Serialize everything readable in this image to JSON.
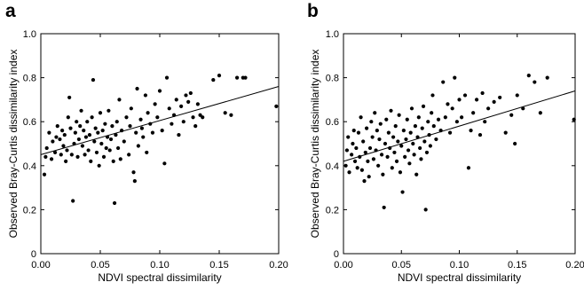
{
  "chart_data": [
    {
      "panel_label": "a",
      "type": "scatter",
      "title": "",
      "xlabel": "NDVI spectral dissimilarity",
      "ylabel": "Observed Bray-Curtis dissimilarity index",
      "xlim": [
        0,
        0.2
      ],
      "ylim": [
        0,
        1.0
      ],
      "xticks": [
        "0.00",
        "0.05",
        "0.10",
        "0.15",
        "0.20"
      ],
      "yticks": [
        "0",
        "0.2",
        "0.4",
        "0.6",
        "0.8",
        "1.0"
      ],
      "grid": false,
      "trendline": {
        "x": [
          0,
          0.2
        ],
        "y": [
          0.45,
          0.76
        ]
      },
      "points": [
        [
          0.003,
          0.36
        ],
        [
          0.004,
          0.44
        ],
        [
          0.005,
          0.48
        ],
        [
          0.007,
          0.55
        ],
        [
          0.009,
          0.43
        ],
        [
          0.01,
          0.51
        ],
        [
          0.012,
          0.46
        ],
        [
          0.013,
          0.53
        ],
        [
          0.014,
          0.58
        ],
        [
          0.016,
          0.52
        ],
        [
          0.017,
          0.45
        ],
        [
          0.018,
          0.56
        ],
        [
          0.019,
          0.49
        ],
        [
          0.02,
          0.54
        ],
        [
          0.021,
          0.42
        ],
        [
          0.022,
          0.47
        ],
        [
          0.023,
          0.62
        ],
        [
          0.024,
          0.71
        ],
        [
          0.025,
          0.57
        ],
        [
          0.026,
          0.45
        ],
        [
          0.027,
          0.24
        ],
        [
          0.028,
          0.5
        ],
        [
          0.029,
          0.55
        ],
        [
          0.03,
          0.6
        ],
        [
          0.031,
          0.44
        ],
        [
          0.032,
          0.52
        ],
        [
          0.033,
          0.58
        ],
        [
          0.034,
          0.65
        ],
        [
          0.035,
          0.49
        ],
        [
          0.036,
          0.56
        ],
        [
          0.037,
          0.45
        ],
        [
          0.038,
          0.53
        ],
        [
          0.039,
          0.6
        ],
        [
          0.04,
          0.47
        ],
        [
          0.041,
          0.54
        ],
        [
          0.042,
          0.42
        ],
        [
          0.043,
          0.62
        ],
        [
          0.044,
          0.79
        ],
        [
          0.045,
          0.51
        ],
        [
          0.046,
          0.57
        ],
        [
          0.047,
          0.46
        ],
        [
          0.048,
          0.55
        ],
        [
          0.049,
          0.4
        ],
        [
          0.05,
          0.64
        ],
        [
          0.051,
          0.5
        ],
        [
          0.052,
          0.56
        ],
        [
          0.053,
          0.44
        ],
        [
          0.054,
          0.59
        ],
        [
          0.055,
          0.48
        ],
        [
          0.056,
          0.53
        ],
        [
          0.057,
          0.65
        ],
        [
          0.058,
          0.47
        ],
        [
          0.059,
          0.52
        ],
        [
          0.06,
          0.58
        ],
        [
          0.061,
          0.42
        ],
        [
          0.062,
          0.23
        ],
        [
          0.063,
          0.54
        ],
        [
          0.064,
          0.6
        ],
        [
          0.065,
          0.48
        ],
        [
          0.066,
          0.7
        ],
        [
          0.067,
          0.43
        ],
        [
          0.068,
          0.56
        ],
        [
          0.07,
          0.51
        ],
        [
          0.072,
          0.62
        ],
        [
          0.074,
          0.45
        ],
        [
          0.075,
          0.58
        ],
        [
          0.076,
          0.66
        ],
        [
          0.078,
          0.37
        ],
        [
          0.079,
          0.33
        ],
        [
          0.08,
          0.55
        ],
        [
          0.081,
          0.75
        ],
        [
          0.082,
          0.49
        ],
        [
          0.084,
          0.61
        ],
        [
          0.085,
          0.57
        ],
        [
          0.086,
          0.53
        ],
        [
          0.088,
          0.72
        ],
        [
          0.089,
          0.46
        ],
        [
          0.09,
          0.64
        ],
        [
          0.092,
          0.59
        ],
        [
          0.094,
          0.55
        ],
        [
          0.096,
          0.68
        ],
        [
          0.098,
          0.62
        ],
        [
          0.1,
          0.74
        ],
        [
          0.102,
          0.56
        ],
        [
          0.104,
          0.41
        ],
        [
          0.106,
          0.8
        ],
        [
          0.108,
          0.66
        ],
        [
          0.11,
          0.59
        ],
        [
          0.112,
          0.63
        ],
        [
          0.114,
          0.7
        ],
        [
          0.116,
          0.54
        ],
        [
          0.118,
          0.67
        ],
        [
          0.12,
          0.6
        ],
        [
          0.122,
          0.72
        ],
        [
          0.124,
          0.69
        ],
        [
          0.126,
          0.73
        ],
        [
          0.128,
          0.62
        ],
        [
          0.13,
          0.58
        ],
        [
          0.132,
          0.68
        ],
        [
          0.134,
          0.63
        ],
        [
          0.136,
          0.62
        ],
        [
          0.145,
          0.79
        ],
        [
          0.15,
          0.81
        ],
        [
          0.155,
          0.64
        ],
        [
          0.16,
          0.63
        ],
        [
          0.165,
          0.8
        ],
        [
          0.17,
          0.8
        ],
        [
          0.172,
          0.8
        ],
        [
          0.198,
          0.67
        ]
      ]
    },
    {
      "panel_label": "b",
      "type": "scatter",
      "title": "",
      "xlabel": "NDVI spectral dissimilarity",
      "ylabel": "Observed Bray-Curtis dissimilarity index",
      "xlim": [
        0,
        0.2
      ],
      "ylim": [
        0,
        1.0
      ],
      "xticks": [
        "0.00",
        "0.05",
        "0.10",
        "0.15",
        "0.20"
      ],
      "yticks": [
        "0",
        "0.2",
        "0.4",
        "0.6",
        "0.8",
        "1.0"
      ],
      "grid": false,
      "trendline": {
        "x": [
          0,
          0.2
        ],
        "y": [
          0.42,
          0.74
        ]
      },
      "points": [
        [
          0.002,
          0.4
        ],
        [
          0.003,
          0.47
        ],
        [
          0.004,
          0.53
        ],
        [
          0.005,
          0.37
        ],
        [
          0.007,
          0.45
        ],
        [
          0.008,
          0.5
        ],
        [
          0.009,
          0.56
        ],
        [
          0.01,
          0.42
        ],
        [
          0.011,
          0.48
        ],
        [
          0.012,
          0.39
        ],
        [
          0.013,
          0.55
        ],
        [
          0.014,
          0.44
        ],
        [
          0.015,
          0.62
        ],
        [
          0.016,
          0.38
        ],
        [
          0.017,
          0.51
        ],
        [
          0.018,
          0.33
        ],
        [
          0.019,
          0.46
        ],
        [
          0.02,
          0.57
        ],
        [
          0.021,
          0.42
        ],
        [
          0.022,
          0.35
        ],
        [
          0.023,
          0.48
        ],
        [
          0.024,
          0.6
        ],
        [
          0.025,
          0.53
        ],
        [
          0.026,
          0.43
        ],
        [
          0.027,
          0.64
        ],
        [
          0.028,
          0.47
        ],
        [
          0.029,
          0.56
        ],
        [
          0.03,
          0.4
        ],
        [
          0.031,
          0.52
        ],
        [
          0.032,
          0.59
        ],
        [
          0.033,
          0.45
        ],
        [
          0.034,
          0.36
        ],
        [
          0.035,
          0.21
        ],
        [
          0.036,
          0.5
        ],
        [
          0.037,
          0.61
        ],
        [
          0.038,
          0.44
        ],
        [
          0.039,
          0.55
        ],
        [
          0.04,
          0.48
        ],
        [
          0.041,
          0.65
        ],
        [
          0.042,
          0.39
        ],
        [
          0.043,
          0.53
        ],
        [
          0.044,
          0.46
        ],
        [
          0.045,
          0.58
        ],
        [
          0.046,
          0.42
        ],
        [
          0.047,
          0.51
        ],
        [
          0.048,
          0.63
        ],
        [
          0.049,
          0.37
        ],
        [
          0.05,
          0.49
        ],
        [
          0.051,
          0.28
        ],
        [
          0.052,
          0.56
        ],
        [
          0.053,
          0.44
        ],
        [
          0.054,
          0.52
        ],
        [
          0.055,
          0.61
        ],
        [
          0.056,
          0.47
        ],
        [
          0.057,
          0.41
        ],
        [
          0.058,
          0.55
        ],
        [
          0.059,
          0.66
        ],
        [
          0.06,
          0.5
        ],
        [
          0.061,
          0.45
        ],
        [
          0.062,
          0.58
        ],
        [
          0.063,
          0.36
        ],
        [
          0.064,
          0.53
        ],
        [
          0.065,
          0.62
        ],
        [
          0.066,
          0.48
        ],
        [
          0.067,
          0.43
        ],
        [
          0.068,
          0.57
        ],
        [
          0.069,
          0.67
        ],
        [
          0.07,
          0.51
        ],
        [
          0.071,
          0.2
        ],
        [
          0.072,
          0.46
        ],
        [
          0.073,
          0.6
        ],
        [
          0.074,
          0.54
        ],
        [
          0.075,
          0.49
        ],
        [
          0.076,
          0.64
        ],
        [
          0.077,
          0.72
        ],
        [
          0.078,
          0.58
        ],
        [
          0.08,
          0.52
        ],
        [
          0.082,
          0.61
        ],
        [
          0.084,
          0.56
        ],
        [
          0.086,
          0.78
        ],
        [
          0.088,
          0.62
        ],
        [
          0.09,
          0.68
        ],
        [
          0.092,
          0.55
        ],
        [
          0.094,
          0.66
        ],
        [
          0.096,
          0.8
        ],
        [
          0.098,
          0.6
        ],
        [
          0.1,
          0.7
        ],
        [
          0.102,
          0.62
        ],
        [
          0.105,
          0.72
        ],
        [
          0.108,
          0.39
        ],
        [
          0.11,
          0.56
        ],
        [
          0.112,
          0.64
        ],
        [
          0.115,
          0.7
        ],
        [
          0.118,
          0.54
        ],
        [
          0.12,
          0.73
        ],
        [
          0.122,
          0.6
        ],
        [
          0.125,
          0.66
        ],
        [
          0.13,
          0.69
        ],
        [
          0.135,
          0.71
        ],
        [
          0.14,
          0.55
        ],
        [
          0.145,
          0.63
        ],
        [
          0.148,
          0.5
        ],
        [
          0.15,
          0.72
        ],
        [
          0.155,
          0.66
        ],
        [
          0.16,
          0.81
        ],
        [
          0.165,
          0.78
        ],
        [
          0.17,
          0.64
        ],
        [
          0.176,
          0.8
        ],
        [
          0.199,
          0.61
        ]
      ]
    }
  ]
}
